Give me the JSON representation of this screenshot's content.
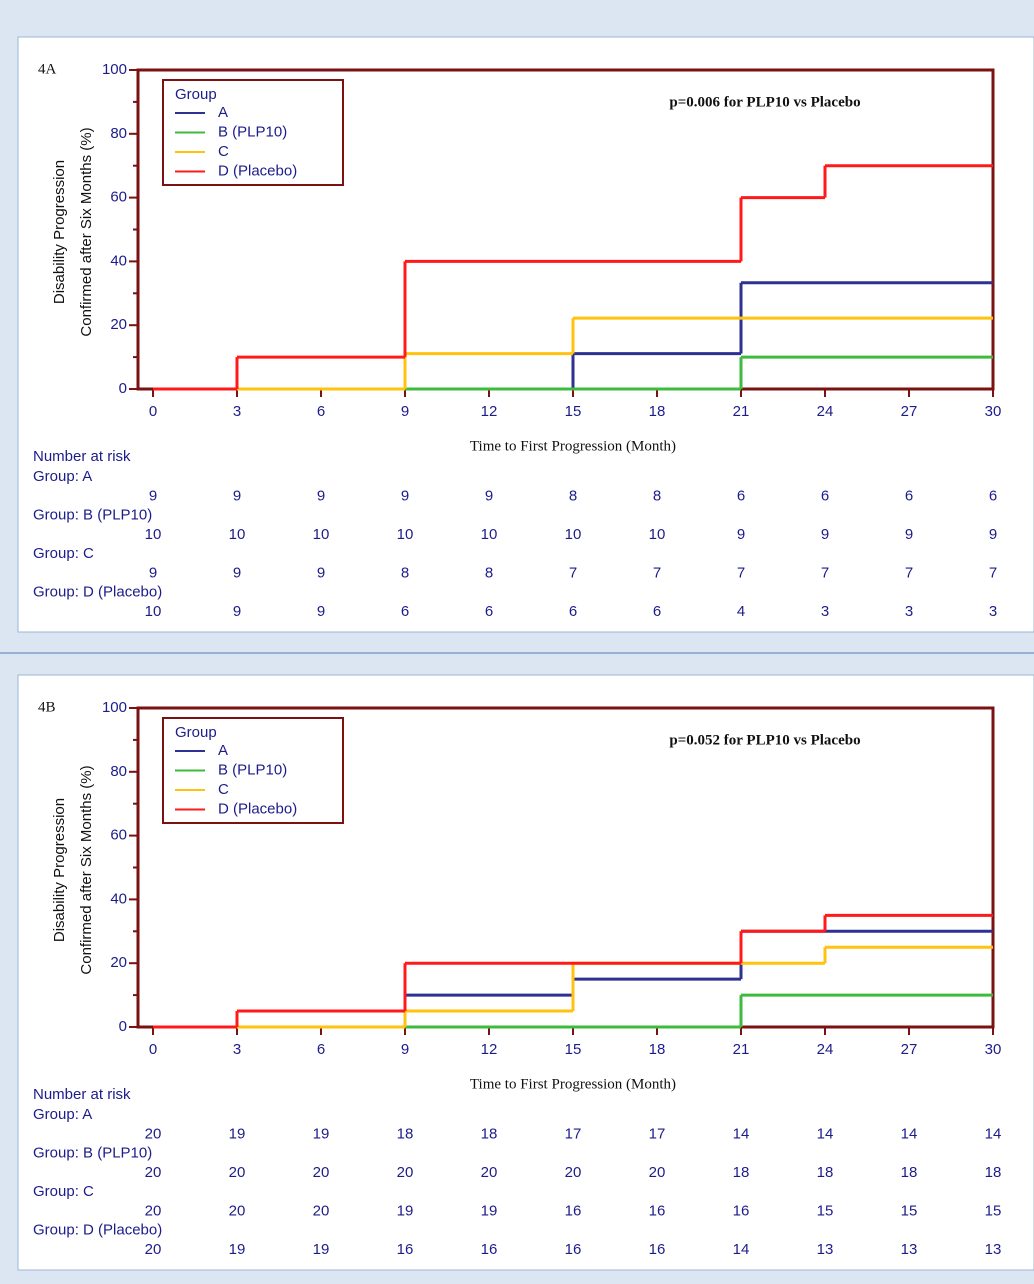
{
  "chart_data": [
    {
      "type": "step",
      "panel_label": "4A",
      "annotation": "p=0.006 for PLP10 vs Placebo",
      "x_label": "Time to First Progression (Month)",
      "y_label": [
        "Disability Progression",
        "Confirmed after Six Months (%)"
      ],
      "legend_title": "Group",
      "legend": "upper left",
      "xlim": [
        0,
        30
      ],
      "xticks": [
        0,
        3,
        6,
        9,
        12,
        15,
        18,
        21,
        24,
        27,
        30
      ],
      "ylim": [
        0,
        100
      ],
      "yticks": [
        0,
        20,
        40,
        60,
        80,
        100
      ],
      "series": [
        {
          "name": "A",
          "color": "#2e3192",
          "x": [
            0,
            15,
            21
          ],
          "values": [
            0,
            11.1,
            33.3
          ]
        },
        {
          "name": "B (PLP10)",
          "color": "#3dbb3d",
          "x": [
            0,
            21
          ],
          "values": [
            0,
            10
          ]
        },
        {
          "name": "C",
          "color": "#ffc20e",
          "x": [
            0,
            9,
            15
          ],
          "values": [
            0,
            11.1,
            22.2
          ]
        },
        {
          "name": "D (Placebo)",
          "color": "#ff1a1a",
          "x": [
            0,
            3,
            9,
            21,
            24
          ],
          "values": [
            0,
            10,
            40,
            60,
            70
          ]
        }
      ],
      "risk_table": {
        "title": "Number at risk",
        "rows": [
          {
            "label": "Group: A",
            "values": [
              9,
              9,
              9,
              9,
              9,
              8,
              8,
              6,
              6,
              6,
              6
            ]
          },
          {
            "label": "Group: B (PLP10)",
            "values": [
              10,
              10,
              10,
              10,
              10,
              10,
              10,
              9,
              9,
              9,
              9
            ]
          },
          {
            "label": "Group: C",
            "values": [
              9,
              9,
              9,
              8,
              8,
              7,
              7,
              7,
              7,
              7,
              7
            ]
          },
          {
            "label": "Group: D (Placebo)",
            "values": [
              10,
              9,
              9,
              6,
              6,
              6,
              6,
              4,
              3,
              3,
              3
            ]
          }
        ]
      }
    },
    {
      "type": "step",
      "panel_label": "4B",
      "annotation": "p=0.052 for PLP10 vs Placebo",
      "x_label": "Time to First Progression (Month)",
      "y_label": [
        "Disability Progression",
        "Confirmed after Six Months (%)"
      ],
      "legend_title": "Group",
      "legend": "upper left",
      "xlim": [
        0,
        30
      ],
      "xticks": [
        0,
        3,
        6,
        9,
        12,
        15,
        18,
        21,
        24,
        27,
        30
      ],
      "ylim": [
        0,
        100
      ],
      "yticks": [
        0,
        20,
        40,
        60,
        80,
        100
      ],
      "series": [
        {
          "name": "A",
          "color": "#2e3192",
          "x": [
            0,
            9,
            15,
            21
          ],
          "values": [
            0,
            10,
            15,
            30
          ]
        },
        {
          "name": "B (PLP10)",
          "color": "#3dbb3d",
          "x": [
            0,
            21
          ],
          "values": [
            0,
            10
          ]
        },
        {
          "name": "C",
          "color": "#ffc20e",
          "x": [
            0,
            9,
            15,
            24
          ],
          "values": [
            0,
            5,
            20,
            25
          ]
        },
        {
          "name": "D (Placebo)",
          "color": "#ff1a1a",
          "x": [
            0,
            3,
            9,
            21,
            24
          ],
          "values": [
            0,
            5,
            20,
            30,
            35
          ]
        }
      ],
      "risk_table": {
        "title": "Number at risk",
        "rows": [
          {
            "label": "Group: A",
            "values": [
              20,
              19,
              19,
              18,
              18,
              17,
              17,
              14,
              14,
              14,
              14
            ]
          },
          {
            "label": "Group: B (PLP10)",
            "values": [
              20,
              20,
              20,
              20,
              20,
              20,
              20,
              18,
              18,
              18,
              18
            ]
          },
          {
            "label": "Group: C",
            "values": [
              20,
              20,
              20,
              19,
              19,
              16,
              16,
              16,
              15,
              15,
              15
            ]
          },
          {
            "label": "Group: D (Placebo)",
            "values": [
              20,
              19,
              19,
              16,
              16,
              16,
              16,
              14,
              13,
              13,
              13
            ]
          }
        ]
      }
    }
  ]
}
